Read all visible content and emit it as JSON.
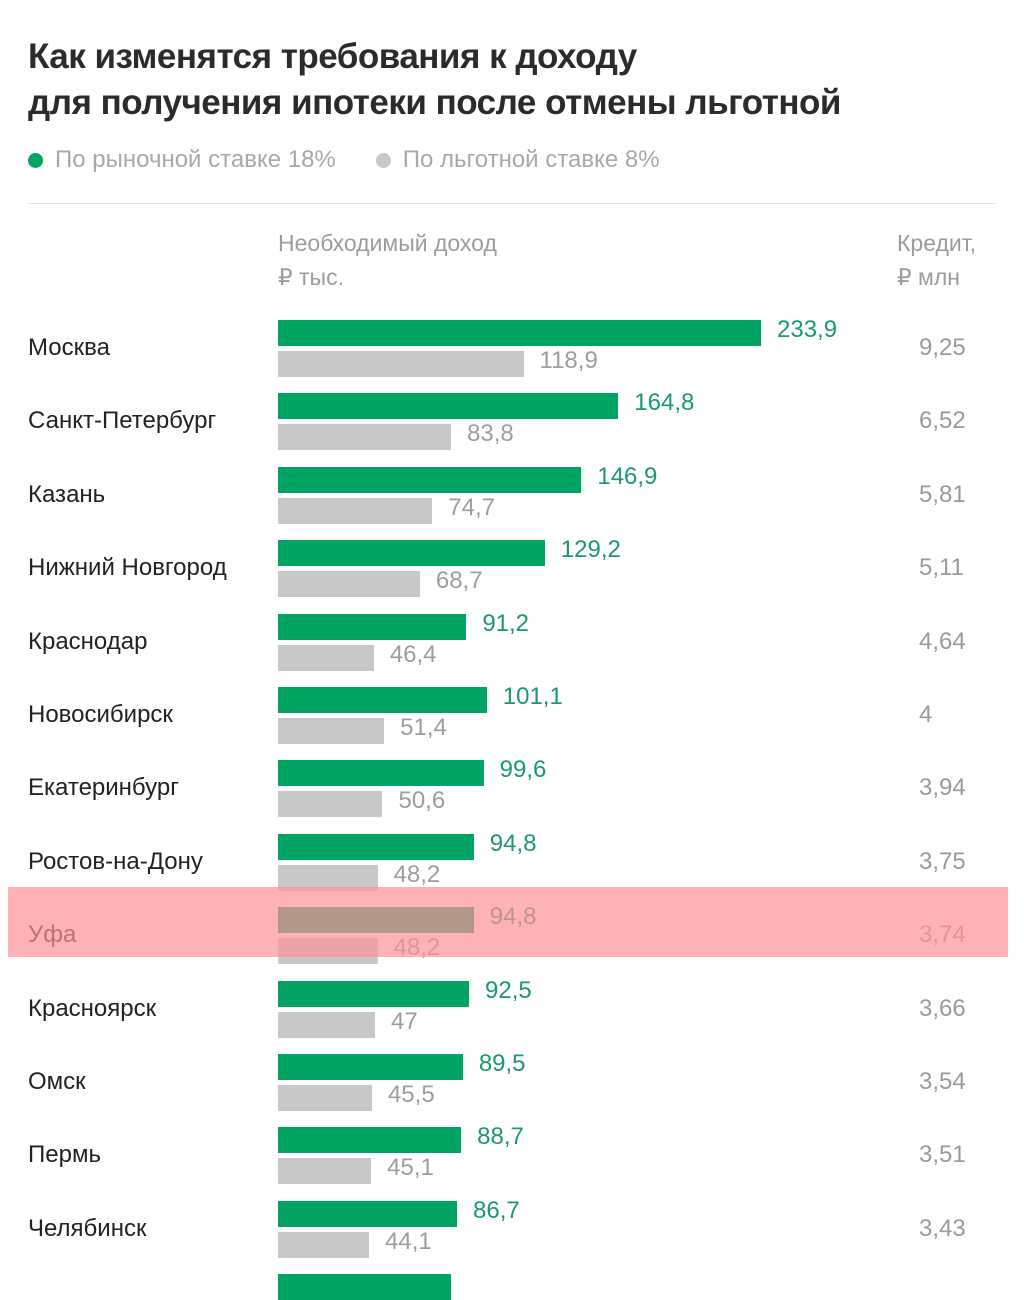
{
  "chart_data": {
    "type": "bar",
    "orientation": "horizontal",
    "title": "Как изменятся требования к доходу для получения ипотеки после отмены льготной",
    "xlabel": "Необходимый доход ₽ тыс.",
    "secondary_column_label": "Кредит, ₽ млн",
    "legend": [
      {
        "name": "По рыночной ставке 18%",
        "color": "#02a464"
      },
      {
        "name": "По льготной ставке 8%",
        "color": "#c8c8c8"
      }
    ],
    "legend_position": "top-left",
    "grid": false,
    "categories": [
      "Москва",
      "Санкт-Петербург",
      "Казань",
      "Нижний Новгород",
      "Краснодар",
      "Новосибирск",
      "Екатеринбург",
      "Ростов-на-Дону",
      "Уфа",
      "Красноярск",
      "Омск",
      "Пермь",
      "Челябинск"
    ],
    "series": [
      {
        "name": "По рыночной ставке 18%",
        "values": [
          233.9,
          164.8,
          146.9,
          129.2,
          91.2,
          101.1,
          99.6,
          94.8,
          94.8,
          92.5,
          89.5,
          88.7,
          86.7
        ],
        "labels": [
          "233,9",
          "164,8",
          "146,9",
          "129,2",
          "91,2",
          "101,1",
          "99,6",
          "94,8",
          "94,8",
          "92,5",
          "89,5",
          "88,7",
          "86,7"
        ]
      },
      {
        "name": "По льготной ставке 8%",
        "values": [
          118.9,
          83.8,
          74.7,
          68.7,
          46.4,
          51.4,
          50.6,
          48.2,
          48.2,
          47,
          45.5,
          45.1,
          44.1
        ],
        "labels": [
          "118,9",
          "83,8",
          "74,7",
          "68,7",
          "46,4",
          "51,4",
          "50,6",
          "48,2",
          "48,2",
          "47",
          "45,5",
          "45,1",
          "44,1"
        ]
      }
    ],
    "credit": [
      "9,25",
      "6,52",
      "5,81",
      "5,11",
      "4,64",
      "4",
      "3,94",
      "3,75",
      "3,74",
      "3,66",
      "3,54",
      "3,51",
      "3,43"
    ],
    "highlighted_category": "Уфа",
    "xlim": [
      0,
      233.9
    ]
  },
  "header": {
    "title_line1": "Как изменятся требования к доходу",
    "title_line2": "для получения ипотеки после отмены льготной"
  },
  "columns": {
    "income_line1": "Необходимый доход",
    "income_line2": "₽ тыс.",
    "credit_line1": "Кредит,",
    "credit_line2": "₽ млн"
  },
  "colors": {
    "market": "#02a464",
    "market_label": "#1a9a6c",
    "preferential": "#c8c8c8",
    "preferential_label": "#9d9d9d",
    "highlight": "#ff9196"
  }
}
